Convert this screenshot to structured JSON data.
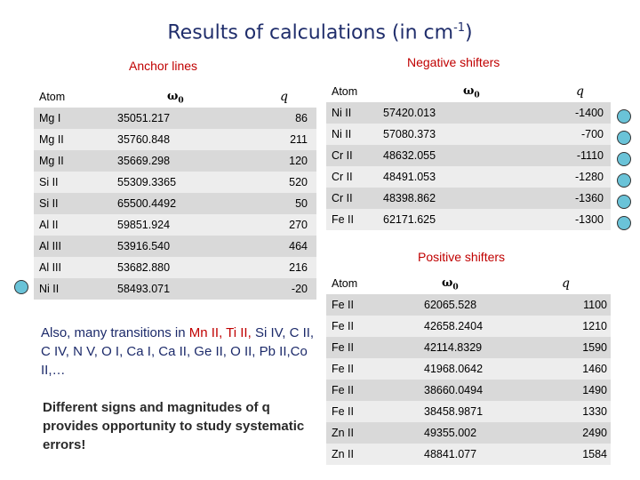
{
  "title": {
    "main": "Results of calculations (in cm",
    "sup": "-1",
    "close": ")"
  },
  "anchor": {
    "title": "Anchor lines",
    "headers": {
      "atom": "Atom",
      "omega": "ω",
      "omega_sub": "0",
      "q": "q"
    },
    "rows": [
      {
        "atom": "Mg I",
        "w": "35051.217",
        "q": "86"
      },
      {
        "atom": "Mg II",
        "w": "35760.848",
        "q": "211"
      },
      {
        "atom": "Mg II",
        "w": "35669.298",
        "q": "120"
      },
      {
        "atom": "Si II",
        "w": "55309.3365",
        "q": "520"
      },
      {
        "atom": "Si II",
        "w": "65500.4492",
        "q": "50"
      },
      {
        "atom": "Al II",
        "w": "59851.924",
        "q": "270"
      },
      {
        "atom": "Al III",
        "w": "53916.540",
        "q": "464"
      },
      {
        "atom": "Al III",
        "w": "53682.880",
        "q": "216"
      },
      {
        "atom": "Ni II",
        "w": "58493.071",
        "q": "-20"
      }
    ]
  },
  "negative": {
    "title": "Negative shifters",
    "headers": {
      "atom": "Atom",
      "omega": "ω",
      "omega_sub": "0",
      "q": "q"
    },
    "rows": [
      {
        "atom": "Ni II",
        "w": "57420.013",
        "q": "-1400"
      },
      {
        "atom": "Ni II",
        "w": "57080.373",
        "q": "-700"
      },
      {
        "atom": "Cr II",
        "w": "48632.055",
        "q": "-1110"
      },
      {
        "atom": "Cr II",
        "w": "48491.053",
        "q": "-1280"
      },
      {
        "atom": "Cr II",
        "w": "48398.862",
        "q": "-1360"
      },
      {
        "atom": "Fe II",
        "w": "62171.625",
        "q": "-1300"
      }
    ]
  },
  "positive": {
    "title": "Positive shifters",
    "headers": {
      "atom": "Atom",
      "omega": "ω",
      "omega_sub": "0",
      "q": "q"
    },
    "rows": [
      {
        "atom": "Fe II",
        "w": "62065.528",
        "q": "1100"
      },
      {
        "atom": "Fe II",
        "w": "42658.2404",
        "q": "1210"
      },
      {
        "atom": "Fe II",
        "w": "42114.8329",
        "q": "1590"
      },
      {
        "atom": "Fe II",
        "w": "41968.0642",
        "q": "1460"
      },
      {
        "atom": "Fe II",
        "w": "38660.0494",
        "q": "1490"
      },
      {
        "atom": "Fe II",
        "w": "38458.9871",
        "q": "1330"
      },
      {
        "atom": "Zn II",
        "w": "49355.002",
        "q": "2490"
      },
      {
        "atom": "Zn II",
        "w": "48841.077",
        "q": "1584"
      }
    ]
  },
  "note1": {
    "p1": "Also, many transitions in ",
    "h1": "Mn II, Ti II,",
    "p2": "Si IV, C II, C IV, N V, O I, Ca I, Ca II, Ge II, O II, Pb II,Co II,…"
  },
  "note2": "Different signs and magnitudes of q provides opportunity  to study systematic errors!",
  "colors": {
    "title": "#1f2d6b",
    "section": "#c00000",
    "row_a": "#d9d9d9",
    "row_b": "#ededed",
    "dot": "#6ac3d8"
  }
}
